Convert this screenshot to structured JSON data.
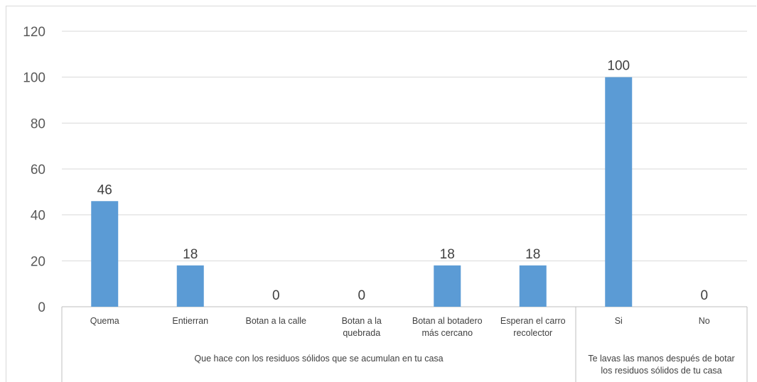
{
  "chart_data": {
    "type": "bar",
    "title": "",
    "xlabel": "",
    "ylabel": "",
    "ylim": [
      0,
      120
    ],
    "yticks": [
      0,
      20,
      40,
      60,
      80,
      100,
      120
    ],
    "grid": true,
    "bar_color": "#5b9bd5",
    "categories": [
      [
        "Quema"
      ],
      [
        "Entierran"
      ],
      [
        "Botan a la calle"
      ],
      [
        "Botan a la",
        "quebrada"
      ],
      [
        "Botan al botadero",
        "más cercano"
      ],
      [
        "Esperan el carro",
        "recolector"
      ],
      [
        "Si"
      ],
      [
        "No"
      ]
    ],
    "values": [
      46,
      18,
      0,
      0,
      18,
      18,
      100,
      0
    ],
    "groups": [
      {
        "label": [
          "Que hace con los residuos sólidos que se acumulan en tu casa"
        ],
        "start": 0,
        "end": 5
      },
      {
        "label": [
          "Te lavas las manos después de botar",
          "los residuos sólidos de tu casa"
        ],
        "start": 6,
        "end": 7
      }
    ]
  }
}
